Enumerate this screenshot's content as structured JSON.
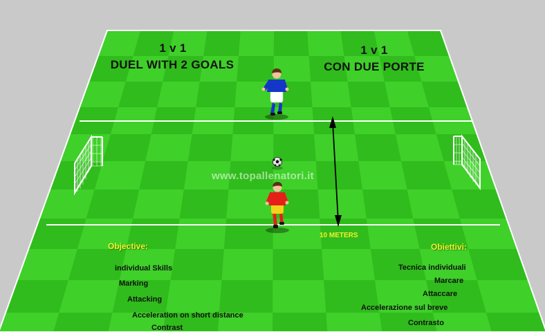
{
  "colors": {
    "background": "#c9c9c9",
    "grass_light": "#3fd02a",
    "grass_dark": "#30bc1c",
    "lines": "#ffffff",
    "accent_text": "#f4ee2a",
    "player_blue_shirt": "#1437c8",
    "player_red_shirt": "#e42018"
  },
  "titles": {
    "left_line1": "1 v 1",
    "left_line2": "DUEL WITH 2 GOALS",
    "right_line1": "1 v 1",
    "right_line2": "CON DUE PORTE"
  },
  "watermark": "www.topallenatori.it",
  "distance_label": "10 METERS",
  "objectives_en": {
    "heading": "Objective:",
    "items": [
      "individual  Skills",
      "Marking",
      "Attacking",
      "Acceleration on short distance",
      "Contrast"
    ]
  },
  "objectives_it": {
    "heading": "Obiettivi:",
    "items": [
      "Tecnica individuali",
      "Marcare",
      "Attaccare",
      "Accelerazione sul breve",
      "Contrasto"
    ]
  },
  "icons": [
    "goal-net-icon",
    "soccer-ball-icon",
    "player-icon",
    "double-arrow-icon"
  ]
}
